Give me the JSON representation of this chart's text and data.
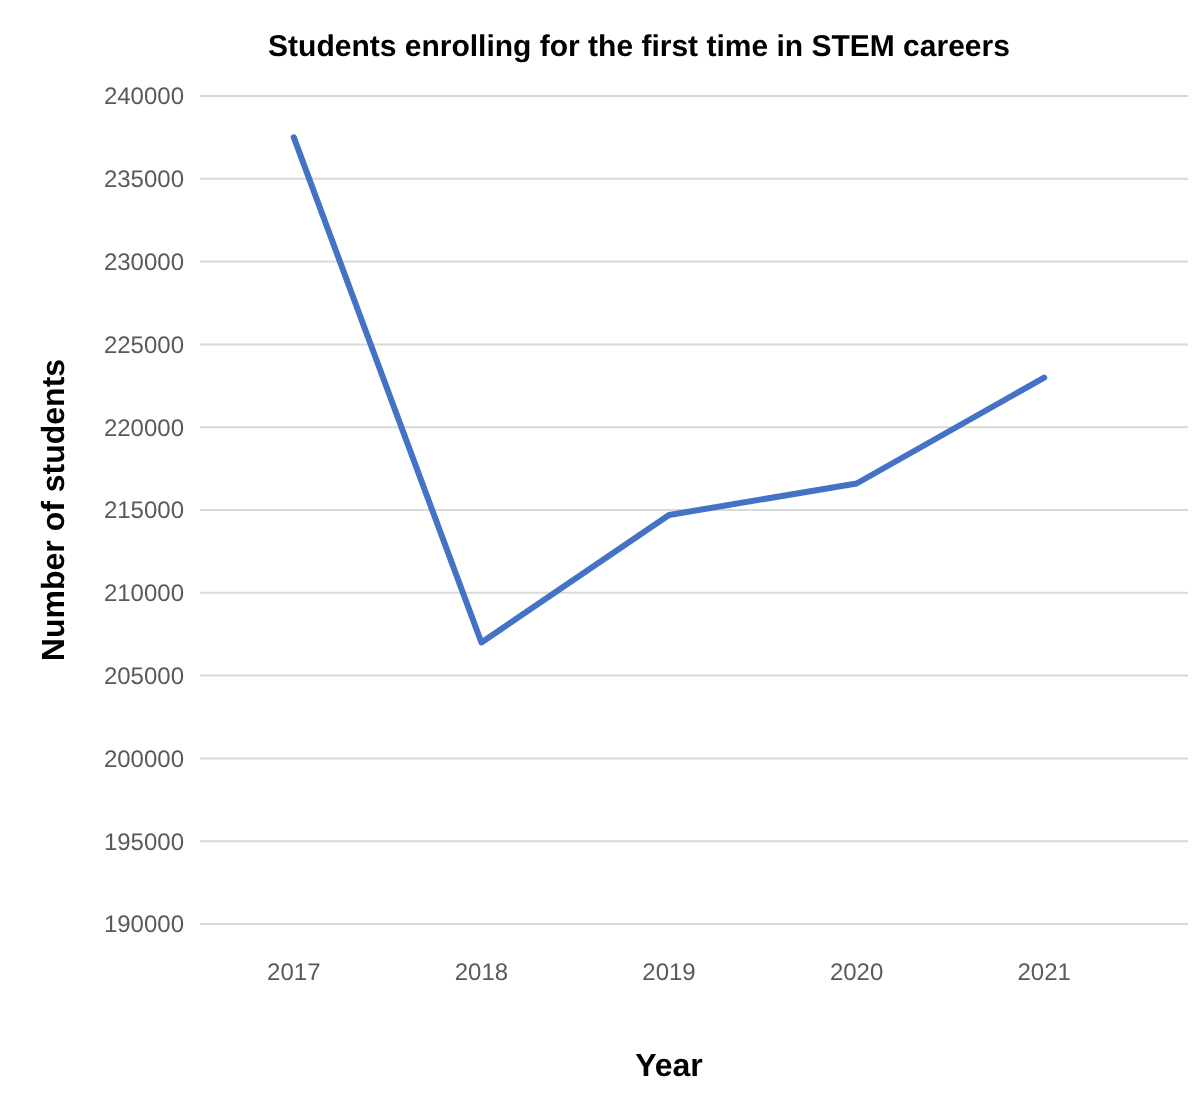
{
  "chart_data": {
    "type": "line",
    "title": "Students enrolling for the first time in STEM careers",
    "xlabel": "Year",
    "ylabel": "Number of students",
    "categories": [
      "2017",
      "2018",
      "2019",
      "2020",
      "2021"
    ],
    "series": [
      {
        "color": "#4472c4",
        "values": [
          237500,
          207000,
          214700,
          216600,
          223000
        ]
      }
    ],
    "ylim": [
      190000,
      240000
    ],
    "yticks": [
      190000,
      195000,
      200000,
      205000,
      210000,
      215000,
      220000,
      225000,
      230000,
      235000,
      240000
    ],
    "grid": "y",
    "marker": "none",
    "line_style": "solid"
  }
}
